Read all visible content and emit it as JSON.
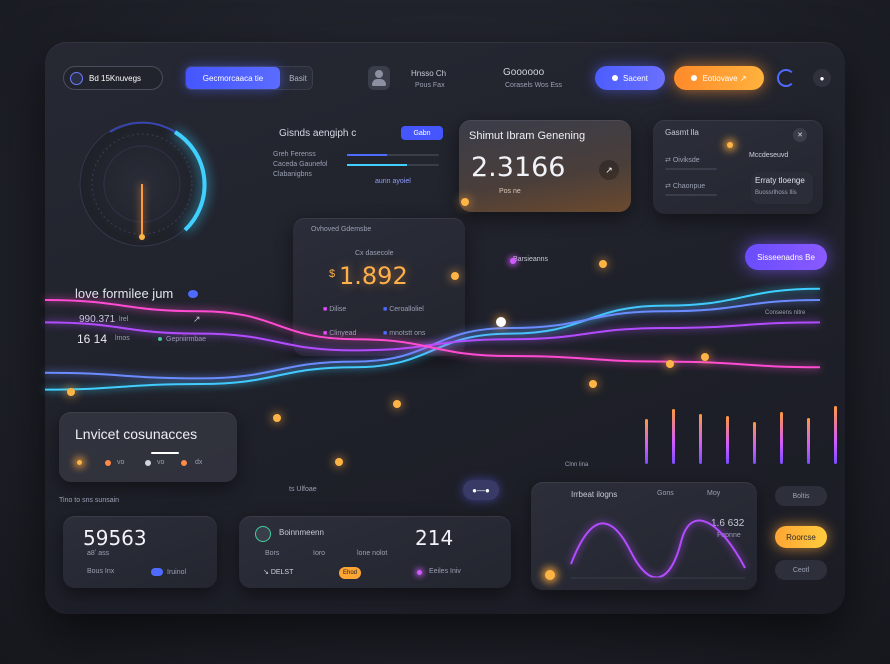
{
  "header": {
    "app_badge": "Bd 15Knuvegs",
    "segment_active": "Gecmorcaaca tie",
    "segment_other": "Basit",
    "user_title": "Hnsso Ch",
    "user_sub": "Pous Fax",
    "center_title": "Goooooo",
    "center_sub": "Corasels Wos Ess",
    "btn_blue": "Sacent",
    "btn_orange": "Eotiovave ↗"
  },
  "gauge_card": {
    "label": "love formilee jum",
    "row1_value": "990.371",
    "row1_unit": "lrel",
    "row2_value": "16 14",
    "row2_unit": "lmos",
    "row2_link": "Gepniirmbae"
  },
  "search_card": {
    "title": "Gisnds aengiph c",
    "pill": "Gabn",
    "rows": [
      "Greh Ferenss",
      "Caceda Gaunefol",
      "Clabanigbns"
    ],
    "link": "aunn ayoiel"
  },
  "price_card": {
    "title": "Ovhoved Gdemsbe",
    "subtitle": "Cx dasecole",
    "value": "1.892",
    "currency": "$",
    "legend": [
      "Dilise",
      "Ceroalloliel",
      "Clinyead",
      "mnotstt ons"
    ]
  },
  "stat_card": {
    "title": "Shimut Ibram Genening",
    "value": "2.3166",
    "sub": "Pos ne"
  },
  "list_card": {
    "title": "Gasmt lla",
    "items": [
      "Oiviksde",
      "Chaonpue"
    ],
    "badge": "Mccdeseuvd",
    "note_title": "Erraty tloenge",
    "note_sub": "Buossrlhoss Ilis"
  },
  "purple_pill": "Sisseenadns Be",
  "line_chart_label": "Barsieanns",
  "line_chart_axis": "Conseens nitre",
  "bars_axis": "Clnn lina",
  "left_card": {
    "title": "Lnvicet cosunacces",
    "labels": [
      "vo",
      "vo",
      "dx"
    ],
    "footer": "ts Ulfoae"
  },
  "section_label": "Tino to sns sunsain",
  "kpi1": {
    "value": "59563",
    "sub": "a8ʼ ass",
    "label1": "Bous Inx",
    "label2": "Iruinol"
  },
  "kpi2": {
    "title": "Boinnmeenn",
    "sub_items": [
      "Bors",
      "Ioro",
      "lone nolot"
    ],
    "value": "214",
    "footer1": "DELST",
    "footer2": "Ehod",
    "footer3": "Eeiles Iniv"
  },
  "wave_card": {
    "title": "Irrbeat ilogns",
    "col2": "Gons",
    "col3": "Moy",
    "value": "1.6 632",
    "sub": "Fopnne"
  },
  "right_buttons": [
    "Boltis",
    "Roorcse",
    "Ceotl"
  ],
  "colors": {
    "accent_blue": "#4f6bff",
    "accent_orange": "#ffa534",
    "accent_purple": "#7a4dff",
    "accent_pink": "#e04cff",
    "cyan": "#3fd0ff"
  },
  "chart_data": {
    "type": "line",
    "series": [
      {
        "values": [
          0.42,
          0.4,
          0.34,
          0.22,
          0.12,
          0.06
        ]
      },
      {
        "values": [
          0.36,
          0.38,
          0.32,
          0.2,
          0.14,
          0.1
        ]
      },
      {
        "values": [
          0.18,
          0.22,
          0.28,
          0.24,
          0.2,
          0.18
        ]
      },
      {
        "values": [
          0.1,
          0.14,
          0.24,
          0.3,
          0.32,
          0.34
        ]
      }
    ],
    "bars": [
      0.45,
      0.55,
      0.5,
      0.48,
      0.42,
      0.52,
      0.46,
      0.58
    ]
  }
}
